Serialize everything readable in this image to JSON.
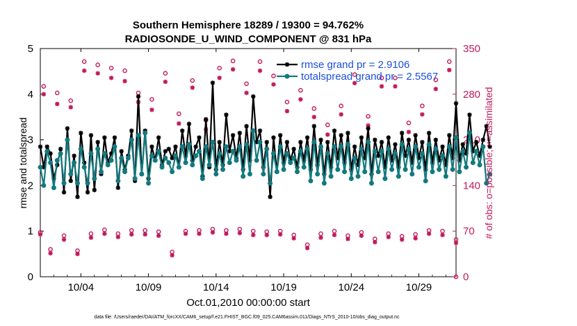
{
  "chart_data": {
    "type": "line",
    "title": [
      "Southern Hemisphere 18289 / 19300 = 94.762%",
      "RADIOSONDE_U_WIND_COMPONENT @ 831 hPa"
    ],
    "xlabel": "Oct.01,2010 00:00:00 start",
    "ylabel": "rmse and totalspread",
    "y2label": "# of obs: o=possible; ×=assimilated",
    "xlim": [
      1.0,
      31.75
    ],
    "ylim": [
      0,
      5
    ],
    "y2lim": [
      0,
      350
    ],
    "xticks": [
      4,
      9,
      14,
      19,
      24,
      29
    ],
    "xtick_labels": [
      "10/04",
      "10/09",
      "10/14",
      "10/19",
      "10/24",
      "10/29"
    ],
    "yticks": [
      0,
      1,
      2,
      3,
      4,
      5
    ],
    "yticks_labels": [
      "0",
      "1",
      "2",
      "3",
      "4",
      "5"
    ],
    "y2ticks": [
      0,
      70,
      140,
      210,
      280,
      350
    ],
    "y2ticks_labels": [
      "0",
      "70",
      "140",
      "210",
      "280",
      "350"
    ],
    "x_start": 1.0,
    "x_step": 0.25,
    "series": [
      {
        "name": "rmse grand pr = 2.9106",
        "color": "#000000",
        "axis": "left",
        "values": [
          2.85,
          2.4,
          2.85,
          2.7,
          2.15,
          2.45,
          2.8,
          1.85,
          3.25,
          2.1,
          2.65,
          1.75,
          3.15,
          2.5,
          1.85,
          3.1,
          1.9,
          2.95,
          2.25,
          3.05,
          2.5,
          2.7,
          3.05,
          1.95,
          2.75,
          2.35,
          2.65,
          3.2,
          2.1,
          3.95,
          2.25,
          3.2,
          2.15,
          2.85,
          2.55,
          3.05,
          2.45,
          2.75,
          2.8,
          2.6,
          2.85,
          2.4,
          3.2,
          2.65,
          3.35,
          2.55,
          2.85,
          3.05,
          2.2,
          3.45,
          2.4,
          4.25,
          2.35,
          2.95,
          2.45,
          3.55,
          2.75,
          3.1,
          2.6,
          3.15,
          2.35,
          3.3,
          2.55,
          3.95,
          2.95,
          3.2,
          2.4,
          2.95,
          1.75,
          3.05,
          2.3,
          3.1,
          2.5,
          2.95,
          2.55,
          2.8,
          2.4,
          2.95,
          2.55,
          3.05,
          2.35,
          3.3,
          2.45,
          3.0,
          2.25,
          2.95,
          2.4,
          3.2,
          2.6,
          3.1,
          2.5,
          3.15,
          2.35,
          2.85,
          2.45,
          3.05,
          2.6,
          3.25,
          2.25,
          3.0,
          2.65,
          2.95,
          2.4,
          3.05,
          2.55,
          2.9,
          2.4,
          3.15,
          2.65,
          3.0,
          2.5,
          3.1,
          2.6,
          2.95,
          2.35,
          3.15,
          2.5,
          3.0,
          2.55,
          2.85,
          2.45,
          3.1,
          2.6,
          3.8,
          2.55,
          2.9,
          2.7,
          3.55,
          2.75,
          2.95,
          2.65,
          3.0,
          3.3,
          2.85
        ]
      },
      {
        "name": "totalspread grand pr = 2.5567",
        "color": "#137a7f",
        "axis": "left",
        "values": [
          2.4,
          2.0,
          2.75,
          2.5,
          1.95,
          2.55,
          2.7,
          2.05,
          3.0,
          2.25,
          2.5,
          2.05,
          2.8,
          2.4,
          2.05,
          2.7,
          2.15,
          2.8,
          2.3,
          2.7,
          2.45,
          2.55,
          2.85,
          2.1,
          2.6,
          2.3,
          2.6,
          3.0,
          2.15,
          3.1,
          2.25,
          3.15,
          2.05,
          2.65,
          2.55,
          2.75,
          2.4,
          2.6,
          2.5,
          2.3,
          2.65,
          2.4,
          2.85,
          2.5,
          2.9,
          2.45,
          2.65,
          2.75,
          2.15,
          2.85,
          2.45,
          2.95,
          2.25,
          2.7,
          2.35,
          2.85,
          2.5,
          2.75,
          2.55,
          2.85,
          2.2,
          2.9,
          2.25,
          3.2,
          2.55,
          2.95,
          2.25,
          2.8,
          2.05,
          2.7,
          2.3,
          2.85,
          2.35,
          2.7,
          2.5,
          2.6,
          2.3,
          2.75,
          2.4,
          2.8,
          2.1,
          2.95,
          2.25,
          2.85,
          2.05,
          2.7,
          2.2,
          2.85,
          2.35,
          2.85,
          2.3,
          2.9,
          2.15,
          2.6,
          2.2,
          2.8,
          2.3,
          2.95,
          2.05,
          2.75,
          2.3,
          2.75,
          2.15,
          2.8,
          2.35,
          2.7,
          2.2,
          2.9,
          2.35,
          2.8,
          2.25,
          2.85,
          2.4,
          2.7,
          2.1,
          2.9,
          2.3,
          2.8,
          2.35,
          2.65,
          2.2,
          2.85,
          2.35,
          3.05,
          2.3,
          2.75,
          2.4,
          3.15,
          2.5,
          2.75,
          2.45,
          2.85,
          2.05,
          2.25
        ]
      },
      {
        "name": "possible obs (upper, o)",
        "color": "#c2185b",
        "axis": "right",
        "marker": "o",
        "x": [
          1.25,
          2.25,
          3.25,
          4.25,
          5.25,
          6.25,
          7.25,
          8.25,
          9.25,
          10.25,
          11.25,
          12.25,
          13.25,
          14.25,
          15.25,
          16.25,
          17.25,
          18.25,
          19.25,
          20.25,
          21.25,
          22.25,
          23.25,
          24.25,
          25.25,
          26.25,
          27.25,
          28.25,
          29.25,
          30.25,
          31.25
        ],
        "values": [
          292,
          282,
          270,
          330,
          325,
          320,
          316,
          282,
          272,
          312,
          250,
          301,
          240,
          320,
          331,
          296,
          330,
          308,
          268,
          286,
          258,
          233,
          262,
          310,
          246,
          305,
          305,
          236,
          262,
          302,
          330
        ]
      },
      {
        "name": "assimilated obs (upper, ×)",
        "color": "#c2185b",
        "axis": "right",
        "marker": "x",
        "x": [
          1.25,
          2.25,
          3.25,
          4.25,
          5.25,
          6.25,
          7.25,
          8.25,
          9.25,
          10.25,
          11.25,
          12.25,
          13.25,
          14.25,
          15.25,
          16.25,
          17.25,
          18.25,
          19.25,
          20.25,
          21.25,
          22.25,
          23.25,
          24.25,
          25.25,
          26.25,
          27.25,
          28.25,
          29.25,
          30.25,
          31.25
        ],
        "values": [
          280,
          265,
          260,
          316,
          312,
          305,
          300,
          268,
          256,
          299,
          235,
          290,
          226,
          305,
          318,
          282,
          316,
          295,
          254,
          272,
          245,
          218,
          249,
          297,
          232,
          292,
          292,
          222,
          249,
          288,
          317
        ]
      },
      {
        "name": "possible obs (lower, o)",
        "color": "#c2185b",
        "axis": "right",
        "marker": "o",
        "x": [
          1.0,
          1.75,
          2.75,
          3.75,
          4.75,
          5.75,
          6.75,
          7.75,
          8.75,
          9.75,
          10.75,
          11.75,
          12.75,
          13.75,
          14.75,
          15.75,
          16.75,
          17.75,
          18.75,
          19.75,
          20.75,
          21.75,
          22.75,
          23.75,
          24.75,
          25.75,
          26.75,
          27.75,
          28.75,
          29.75,
          30.75,
          31.75
        ],
        "values": [
          68,
          42,
          63,
          40,
          66,
          72,
          66,
          71,
          71,
          69,
          38,
          70,
          71,
          73,
          71,
          73,
          70,
          69,
          70,
          64,
          49,
          66,
          70,
          63,
          68,
          58,
          66,
          62,
          65,
          71,
          70,
          57
        ]
      },
      {
        "name": "assimilated obs (lower, ×)",
        "color": "#c2185b",
        "axis": "right",
        "marker": "x",
        "x": [
          1.0,
          1.75,
          2.75,
          3.75,
          4.75,
          5.75,
          6.75,
          7.75,
          8.75,
          9.75,
          10.75,
          11.75,
          12.75,
          13.75,
          14.75,
          15.75,
          16.75,
          17.75,
          18.75,
          19.75,
          20.75,
          21.75,
          22.75,
          23.75,
          24.75,
          25.75,
          26.75,
          27.75,
          28.75,
          29.75,
          30.75,
          31.75
        ],
        "values": [
          65,
          36,
          57,
          35,
          60,
          66,
          61,
          65,
          65,
          63,
          33,
          66,
          66,
          68,
          66,
          67,
          64,
          64,
          65,
          59,
          44,
          60,
          64,
          58,
          63,
          53,
          61,
          57,
          59,
          66,
          64,
          52
        ]
      },
      {
        "name": "right axis zero marker",
        "color": "#c2185b",
        "axis": "right",
        "marker": "o",
        "x": [
          31.75
        ],
        "values": [
          0
        ]
      }
    ],
    "legend": {
      "placement": "top-right",
      "entries": [
        "rmse grand pr = 2.9106",
        "totalspread grand pr = 2.5567"
      ]
    }
  },
  "footer": "data file: /Users/raeder/DAI/ATM_forcXX/CAM6_setup/f.e21.FHIST_BGC.f09_025.CAM6assim.011/Diags_NTrS_2010-10/obs_diag_output.nc"
}
